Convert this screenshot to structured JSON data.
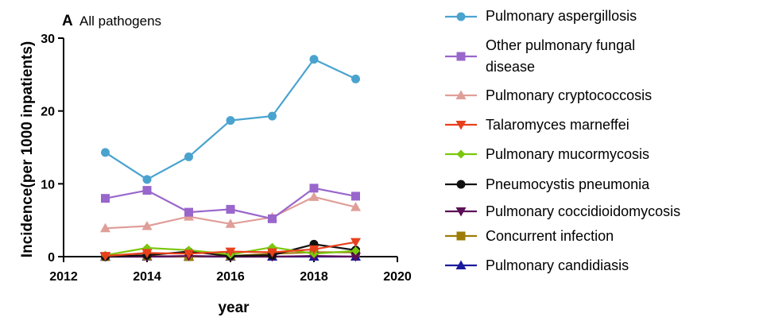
{
  "chart_data": {
    "type": "line",
    "panel_letter": "A",
    "title": "All pathogens",
    "xlabel": "year",
    "ylabel": "Incidence(per 1000 inpatients)",
    "xlim": [
      2012,
      2020
    ],
    "ylim": [
      0,
      30
    ],
    "xticks": [
      2012,
      2014,
      2016,
      2018,
      2020
    ],
    "yticks": [
      0,
      10,
      20,
      30
    ],
    "grid": false,
    "legend_position": "right",
    "x": [
      2013,
      2014,
      2015,
      2016,
      2017,
      2018,
      2019
    ],
    "series": [
      {
        "name": "Pulmonary aspergillosis",
        "color": "#4aa3cf",
        "marker": "circle",
        "values": [
          14.3,
          10.6,
          13.7,
          18.7,
          19.3,
          27.1,
          24.4
        ]
      },
      {
        "name": "Other pulmonary fungal disease",
        "color": "#9966cc",
        "marker": "square",
        "values": [
          8.0,
          9.1,
          6.1,
          6.5,
          5.2,
          9.4,
          8.3
        ]
      },
      {
        "name": "Pulmonary cryptococcosis",
        "color": "#e09e98",
        "marker": "triangle-up",
        "values": [
          3.9,
          4.2,
          5.5,
          4.5,
          5.4,
          8.2,
          6.8
        ]
      },
      {
        "name": "Talaromyces marneffei",
        "color": "#e8401c",
        "marker": "triangle-down",
        "values": [
          0.1,
          0.5,
          0.4,
          0.7,
          0.6,
          1.0,
          2.0
        ]
      },
      {
        "name": "Pulmonary mucormycosis",
        "color": "#7ac70c",
        "marker": "diamond",
        "values": [
          0.2,
          1.2,
          0.9,
          0.3,
          1.3,
          0.4,
          0.8
        ]
      },
      {
        "name": "Pneumocystis pneumonia",
        "color": "#111111",
        "marker": "circle",
        "values": [
          0.0,
          0.2,
          0.7,
          0.1,
          0.2,
          1.7,
          0.9
        ]
      },
      {
        "name": "Pulmonary coccidioidomycosis",
        "color": "#5c0f56",
        "marker": "triangle-down",
        "values": [
          0.0,
          0.0,
          0.1,
          0.0,
          0.0,
          0.1,
          0.0
        ]
      },
      {
        "name": "Concurrent infection",
        "color": "#9c7b07",
        "marker": "square",
        "values": [
          0.0,
          0.1,
          0.0,
          0.1,
          0.4,
          0.6,
          0.6
        ]
      },
      {
        "name": "Pulmonary candidiasis",
        "color": "#1a1a9c",
        "marker": "triangle-up",
        "values": [
          0.0,
          0.0,
          0.0,
          0.0,
          0.0,
          0.0,
          0.0
        ]
      }
    ]
  }
}
